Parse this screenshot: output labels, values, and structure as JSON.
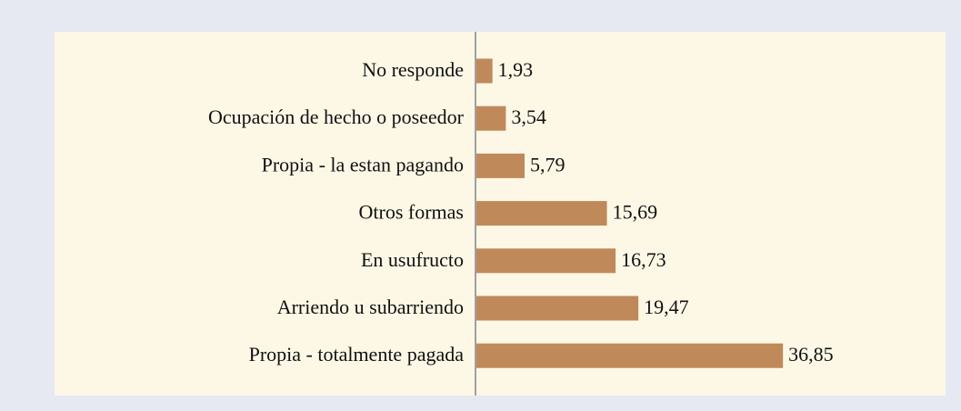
{
  "chart_data": {
    "type": "bar",
    "orientation": "horizontal",
    "categories": [
      "No responde",
      "Ocupación de hecho o poseedor",
      "Propia - la estan pagando",
      "Otros formas",
      "En usufructo",
      "Arriendo u subarriendo",
      "Propia - totalmente pagada"
    ],
    "values": [
      1.93,
      3.54,
      5.79,
      15.69,
      16.73,
      19.47,
      36.85
    ],
    "value_labels": [
      "1,93",
      "3,54",
      "5,79",
      "15,69",
      "16,73",
      "19,47",
      "36,85"
    ],
    "color": "#c0895a"
  }
}
